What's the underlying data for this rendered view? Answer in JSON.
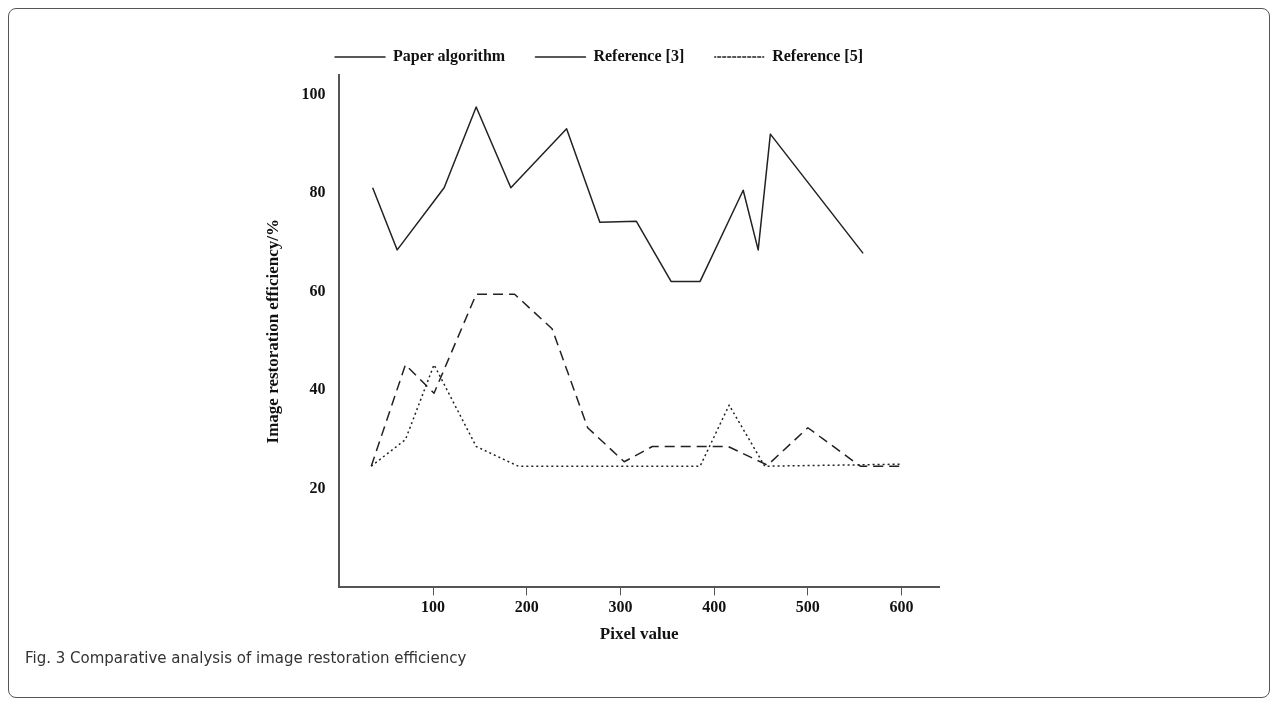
{
  "chart_data": {
    "type": "line",
    "xlabel": "Pixel value",
    "ylabel": "Image restoration efficiency/%",
    "xlim": [
      0,
      640
    ],
    "xticks": [
      100,
      200,
      300,
      400,
      500,
      600
    ],
    "ylim": [
      0,
      104
    ],
    "yticks": [
      20,
      40,
      60,
      80,
      100
    ],
    "grid": false,
    "legend": "top",
    "marker": "none",
    "annotations": [
      "Fig. 3 Comparative analysis of image restoration efficiency"
    ],
    "series": [
      {
        "name": "Paper algorithm",
        "color": "#222222",
        "line_style": "solid",
        "x": [
          35.5,
          61.7,
          111.8,
          146,
          183,
          242.5,
          278,
          317,
          354,
          385,
          431,
          447,
          460,
          559
        ],
        "values": [
          81.1,
          68.5,
          81.1,
          97.5,
          81.1,
          93.1,
          74.1,
          74.3,
          62.1,
          62.1,
          80.6,
          68.5,
          92,
          67.8
        ]
      },
      {
        "name": "Reference [3]",
        "color": "#222222",
        "line_style": "dashed",
        "x": [
          34,
          70.5,
          101,
          146,
          187,
          227,
          265,
          304,
          334,
          415,
          457,
          500,
          556,
          598
        ],
        "values": [
          24.6,
          45.2,
          39.4,
          59.5,
          59.5,
          52.5,
          32.4,
          25.5,
          28.6,
          28.6,
          24.8,
          32.4,
          24.6,
          24.6
        ]
      },
      {
        "name": "Reference [5]",
        "color": "#222222",
        "line_style": "dotted",
        "x": [
          34,
          70.5,
          101,
          146,
          191,
          385,
          416,
          454,
          598
        ],
        "values": [
          24.6,
          30,
          45.2,
          28.6,
          24.6,
          24.6,
          37,
          24.6,
          25
        ]
      }
    ]
  }
}
